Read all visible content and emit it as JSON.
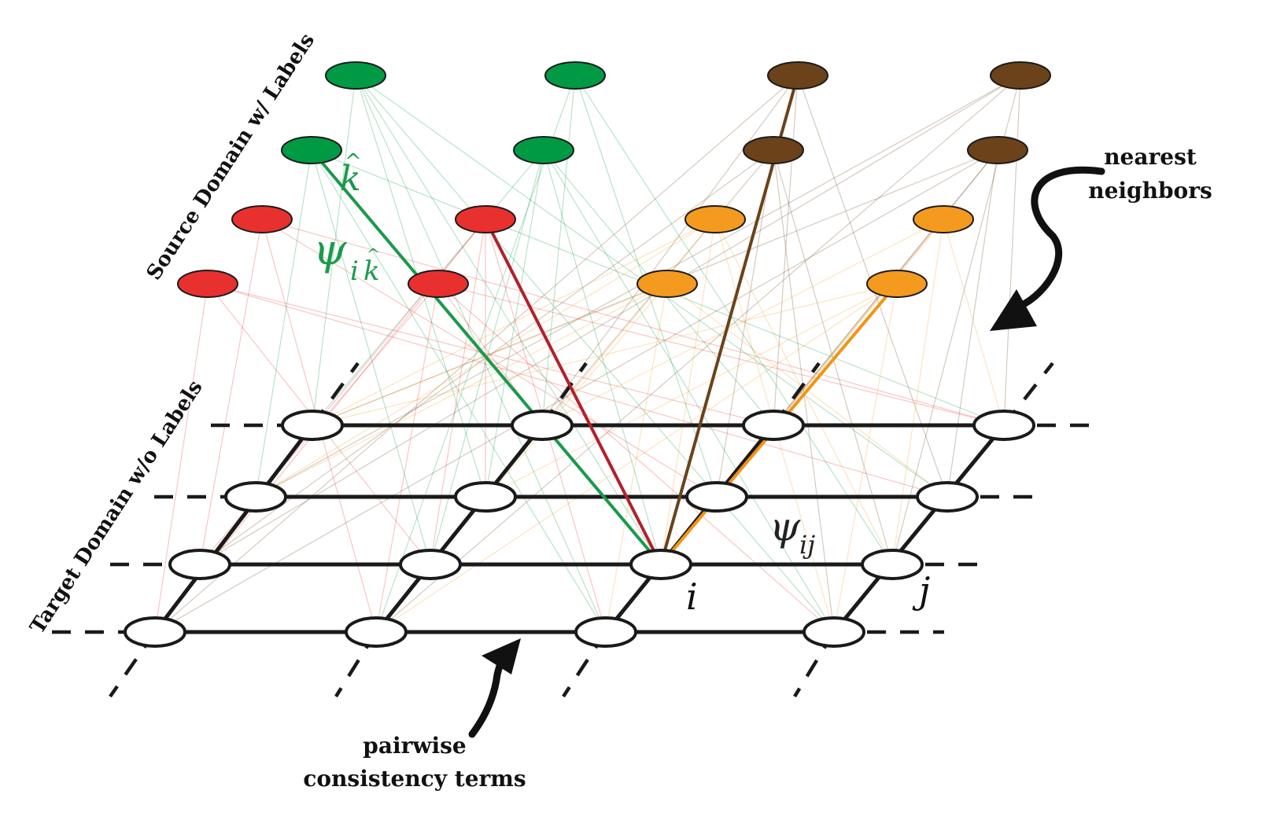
{
  "labels": {
    "source_domain": "Source Domain w/ Labels",
    "target_domain": "Target Domain w/o Labels",
    "nearest_line1": "nearest",
    "nearest_line2": "neighbors",
    "pairwise_line1": "pairwise",
    "pairwise_line2": "consistency terms"
  },
  "math": {
    "k_hat_base": "k",
    "hat": "^",
    "psi": "ψ",
    "ik_sub_i": "i",
    "ik_sub_k": "k",
    "ij_sub": "ij",
    "node_i": "i",
    "node_j": "j"
  },
  "colors": {
    "green": "#009a44",
    "red": "#e8312f",
    "brown": "#6b4219",
    "orange": "#f49a1f",
    "grid": "#1a1a1a",
    "green_line": "#1a9a4a",
    "red_line": "#b4202a",
    "brown_line": "#6b4219",
    "orange_line": "#f39314"
  },
  "source_nodes": [
    {
      "color": "green"
    },
    {
      "color": "green"
    },
    {
      "color": "brown"
    },
    {
      "color": "brown"
    },
    {
      "color": "green"
    },
    {
      "color": "green"
    },
    {
      "color": "brown"
    },
    {
      "color": "brown"
    },
    {
      "color": "red"
    },
    {
      "color": "red"
    },
    {
      "color": "orange"
    },
    {
      "color": "orange"
    },
    {
      "color": "red"
    },
    {
      "color": "red"
    },
    {
      "color": "orange"
    },
    {
      "color": "orange"
    }
  ]
}
